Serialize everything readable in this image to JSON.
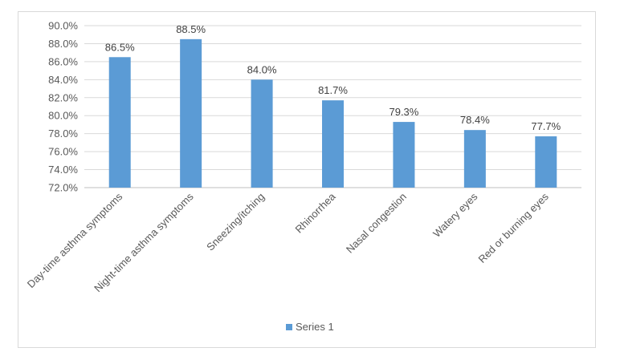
{
  "chart_data": {
    "type": "bar",
    "title": "",
    "xlabel": "",
    "ylabel": "",
    "categories": [
      "Day-time asthma symptoms",
      "Night-time asthma symptoms",
      "Sneezing/itching",
      "Rhinorrhea",
      "Nasal congestion",
      "Watery eyes",
      "Red or burning eyes"
    ],
    "series": [
      {
        "name": "Series 1",
        "values": [
          86.5,
          88.5,
          84.0,
          81.7,
          79.3,
          78.4,
          77.7
        ],
        "labels": [
          "86.5%",
          "88.5%",
          "84.0%",
          "81.7%",
          "79.3%",
          "78.4%",
          "77.7%"
        ]
      }
    ],
    "ylim": [
      72,
      90
    ],
    "yticks": [
      72,
      74,
      76,
      78,
      80,
      82,
      84,
      86,
      88,
      90
    ],
    "ytick_labels": [
      "72.0%",
      "74.0%",
      "76.0%",
      "78.0%",
      "80.0%",
      "82.0%",
      "84.0%",
      "86.0%",
      "88.0%",
      "90.0%"
    ],
    "grid": true,
    "legend_position": "bottom",
    "colors": {
      "bar": "#5b9bd5",
      "grid": "#d9d9d9",
      "axis": "#bfbfbf",
      "text": "#595959"
    }
  }
}
